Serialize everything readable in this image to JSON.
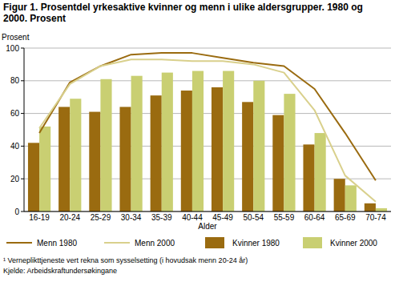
{
  "chart_data": {
    "type": "bar",
    "title": "Figur 1.  Prosentdel yrkesaktive kvinner og menn i ulike aldersgrupper. 1980 og 2000. Prosent",
    "y_label": "Prosent",
    "x_label": "Alder",
    "notes": [
      "¹ Verneplikttjeneste vert rekna som sysselsetting (i hovudsak menn 20-24 år)",
      "Kjelde: Arbeidskraftundersøkingane"
    ],
    "categories": [
      "16-19",
      "20-24",
      "25-29",
      "30-34",
      "35-39",
      "40-44",
      "45-49",
      "50-54",
      "55-59",
      "60-64",
      "65-69",
      "70-74"
    ],
    "series": [
      {
        "name": "Menn 1980",
        "type": "line",
        "color": "#9a6b10",
        "values": [
          48,
          79,
          89,
          96,
          97,
          97,
          94,
          91,
          89,
          75,
          48,
          19
        ]
      },
      {
        "name": "Menn 2000",
        "type": "line",
        "color": "#d9d08c",
        "values": [
          51,
          78,
          89,
          93,
          93,
          92,
          92,
          90,
          85,
          62,
          22,
          6
        ]
      },
      {
        "name": "Kvinner 1980",
        "type": "bar",
        "color": "#9a6b10",
        "values": [
          42,
          64,
          61,
          64,
          71,
          74,
          76,
          67,
          59,
          41,
          20,
          5
        ]
      },
      {
        "name": "Kvinner 2000",
        "type": "bar",
        "color": "#c9cf72",
        "values": [
          52,
          69,
          81,
          83,
          85,
          86,
          86,
          80,
          72,
          48,
          16,
          2
        ]
      }
    ],
    "ylim": [
      0,
      100
    ],
    "yticks": [
      0,
      20,
      40,
      60,
      80,
      100
    ],
    "grid": true,
    "legend": "bottom"
  }
}
